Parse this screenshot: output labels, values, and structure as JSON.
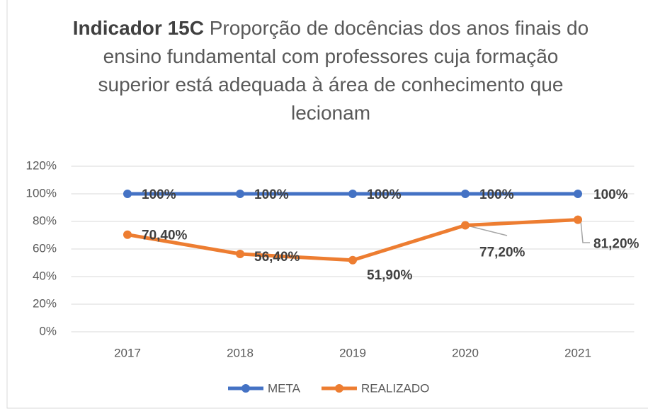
{
  "chart_data": {
    "type": "line",
    "title_prefix": "Indicador 15C",
    "title": "Proporção de docências dos anos finais do ensino fundamental com professores cuja formação superior está adequada à área de conhecimento que lecionam",
    "categories": [
      "2017",
      "2018",
      "2019",
      "2020",
      "2021"
    ],
    "series": [
      {
        "name": "META",
        "color": "#4472c4",
        "values": [
          100,
          100,
          100,
          100,
          100
        ],
        "value_labels": [
          "100%",
          "100%",
          "100%",
          "100%",
          "100%"
        ]
      },
      {
        "name": "REALIZADO",
        "color": "#ed7d31",
        "values": [
          70.4,
          56.4,
          51.9,
          77.2,
          81.2
        ],
        "value_labels": [
          "70,40%",
          "56,40%",
          "51,90%",
          "77,20%",
          "81,20%"
        ]
      }
    ],
    "ylim": [
      0,
      120
    ],
    "yticks": [
      {
        "value": 0,
        "label": "0%"
      },
      {
        "value": 20,
        "label": "20%"
      },
      {
        "value": 40,
        "label": "40%"
      },
      {
        "value": 60,
        "label": "60%"
      },
      {
        "value": 80,
        "label": "80%"
      },
      {
        "value": 100,
        "label": "100%"
      },
      {
        "value": 120,
        "label": "120%"
      }
    ],
    "grid": true,
    "legend": "bottom"
  }
}
